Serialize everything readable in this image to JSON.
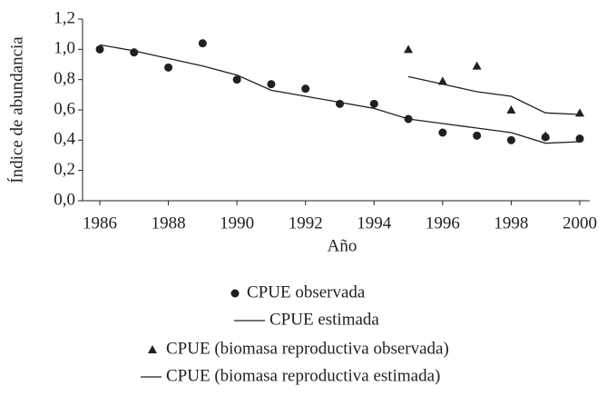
{
  "chart_data": {
    "type": "scatter",
    "xlabel": "Año",
    "ylabel": "Índice de abundancia",
    "xlim": [
      1986,
      2000
    ],
    "xticks": [
      1986,
      1988,
      1990,
      1992,
      1994,
      1996,
      1998,
      2000
    ],
    "ylim": [
      0,
      1.2
    ],
    "yticks": [
      {
        "value": 0,
        "label": "0,0"
      },
      {
        "value": 0.2,
        "label": "0,2"
      },
      {
        "value": 0.4,
        "label": "0,4"
      },
      {
        "value": 0.6,
        "label": "0,6"
      },
      {
        "value": 0.8,
        "label": "0,8"
      },
      {
        "value": 1.0,
        "label": "1,0"
      },
      {
        "value": 1.2,
        "label": "1,2"
      }
    ],
    "series": [
      {
        "name": "CPUE observada",
        "color": "#231f20",
        "marker": "circle",
        "x": [
          1986,
          1987,
          1988,
          1989,
          1990,
          1991,
          1992,
          1993,
          1994,
          1995,
          1996,
          1997,
          1998,
          1999,
          2000
        ],
        "values": [
          1.0,
          0.98,
          0.88,
          1.04,
          0.8,
          0.77,
          0.74,
          0.64,
          0.64,
          0.54,
          0.45,
          0.43,
          0.4,
          0.42,
          0.41
        ]
      },
      {
        "name": "CPUE estimada",
        "color": "#231f20",
        "marker": "line",
        "x": [
          1986,
          1987,
          1988,
          1989,
          1990,
          1991,
          1992,
          1993,
          1994,
          1995,
          1996,
          1997,
          1998,
          1999,
          2000
        ],
        "values": [
          1.03,
          0.99,
          0.94,
          0.89,
          0.83,
          0.73,
          0.69,
          0.65,
          0.61,
          0.54,
          0.51,
          0.48,
          0.45,
          0.38,
          0.39
        ]
      },
      {
        "name": "CPUE (biomasa reproductiva observada)",
        "color": "#231f20",
        "marker": "triangle",
        "x": [
          1995,
          1996,
          1997,
          1998,
          1999,
          2000
        ],
        "values": [
          1.0,
          0.79,
          0.89,
          0.6,
          0.43,
          0.58
        ]
      },
      {
        "name": "CPUE (biomasa reproductiva estimada)",
        "color": "#231f20",
        "marker": "line",
        "x": [
          1995,
          1996,
          1997,
          1998,
          1999,
          2000
        ],
        "values": [
          0.82,
          0.77,
          0.72,
          0.69,
          0.58,
          0.57
        ]
      }
    ]
  }
}
